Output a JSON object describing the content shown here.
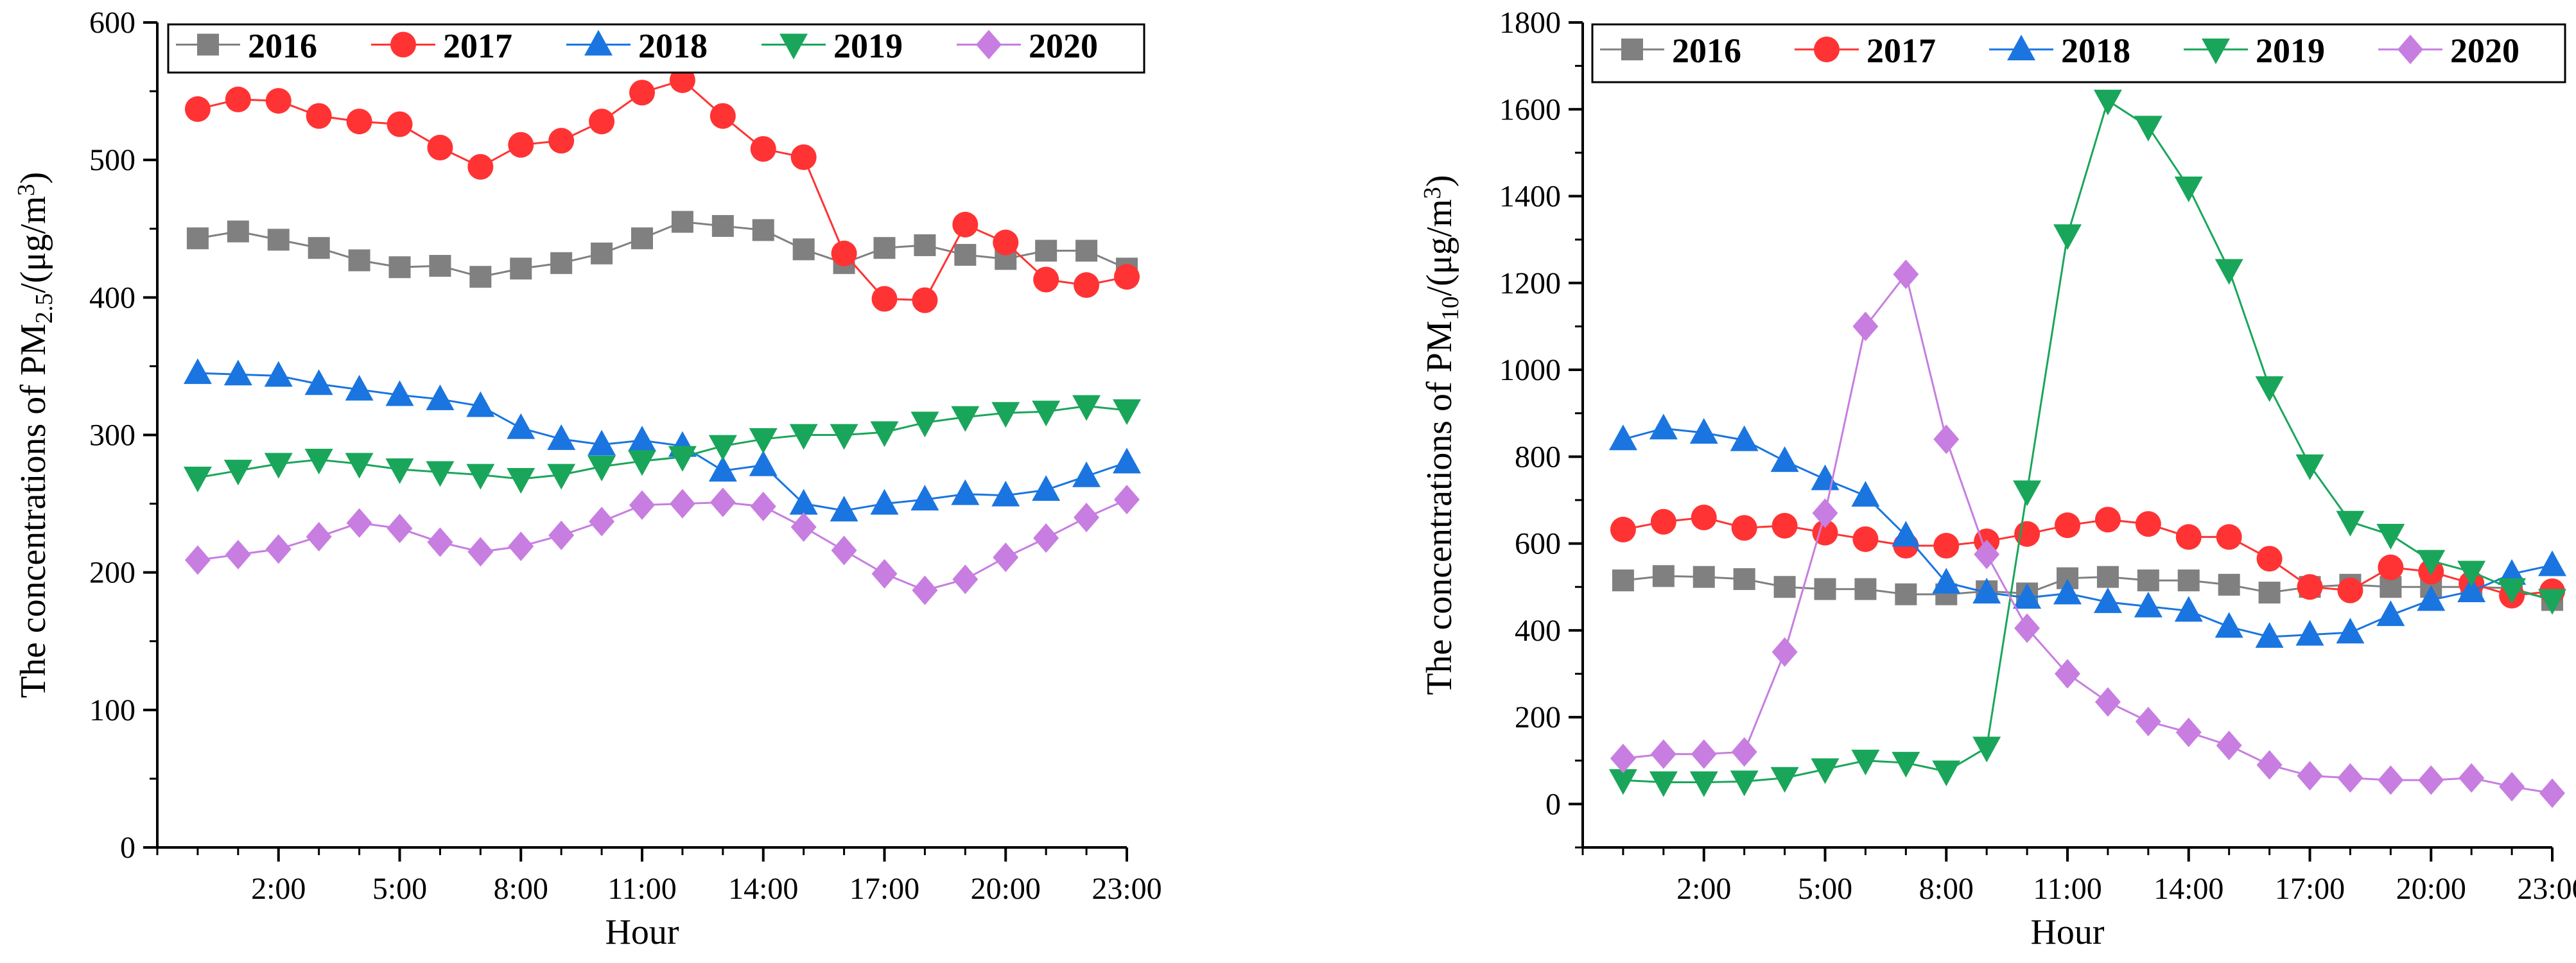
{
  "chart_data": [
    {
      "type": "line",
      "ylabel": {
        "prefix": "The concentrations of PM",
        "sub": "2.5",
        "mid": "/(μg/m",
        "sup": "3",
        "suffix": ")"
      },
      "xlabel": "Hour",
      "xlim": [
        -1,
        23
      ],
      "ylim": [
        0,
        600
      ],
      "yticks": [
        0,
        100,
        200,
        300,
        400,
        500,
        600
      ],
      "xticks": [
        {
          "value": 2,
          "label": "2:00"
        },
        {
          "value": 5,
          "label": "5:00"
        },
        {
          "value": 8,
          "label": "8:00"
        },
        {
          "value": 11,
          "label": "11:00"
        },
        {
          "value": 14,
          "label": "14:00"
        },
        {
          "value": 17,
          "label": "17:00"
        },
        {
          "value": 20,
          "label": "20:00"
        },
        {
          "value": 23,
          "label": "23:00"
        }
      ],
      "x": [
        0,
        1,
        2,
        3,
        4,
        5,
        6,
        7,
        8,
        9,
        10,
        11,
        12,
        13,
        14,
        15,
        16,
        17,
        18,
        19,
        20,
        21,
        22,
        23
      ],
      "legend_position": "top",
      "series": [
        {
          "name": "2016",
          "color": "#808080",
          "marker": "square",
          "values": [
            443,
            448,
            442,
            436,
            427,
            422,
            423,
            415,
            421,
            425,
            432,
            443,
            455,
            452,
            449,
            435,
            425,
            436,
            438,
            431,
            428,
            434,
            434,
            421
          ]
        },
        {
          "name": "2017",
          "color": "#ff3333",
          "marker": "circle",
          "values": [
            537,
            544,
            543,
            532,
            528,
            526,
            509,
            495,
            511,
            514,
            528,
            549,
            558,
            532,
            508,
            502,
            432,
            399,
            398,
            453,
            440,
            413,
            409,
            415
          ]
        },
        {
          "name": "2018",
          "color": "#1a75e0",
          "marker": "triangle-up",
          "values": [
            345,
            344,
            343,
            337,
            333,
            329,
            326,
            321,
            305,
            297,
            293,
            296,
            292,
            274,
            278,
            250,
            245,
            250,
            253,
            257,
            256,
            260,
            270,
            280
          ]
        },
        {
          "name": "2019",
          "color": "#1aa65a",
          "marker": "triangle-down",
          "values": [
            269,
            274,
            279,
            282,
            279,
            275,
            273,
            271,
            268,
            271,
            277,
            281,
            284,
            292,
            297,
            300,
            300,
            302,
            309,
            313,
            316,
            317,
            321,
            318
          ]
        },
        {
          "name": "2020",
          "color": "#c77ee0",
          "marker": "diamond",
          "values": [
            209,
            213,
            217,
            226,
            236,
            232,
            222,
            215,
            219,
            227,
            237,
            249,
            250,
            251,
            248,
            233,
            216,
            199,
            187,
            195,
            211,
            225,
            240,
            253
          ]
        }
      ]
    },
    {
      "type": "line",
      "ylabel": {
        "prefix": "The concentrations of PM",
        "sub": "10",
        "mid": "/(μg/m",
        "sup": "3",
        "suffix": ")"
      },
      "xlabel": "Hour",
      "xlim": [
        -1,
        23
      ],
      "ylim": [
        -100,
        1800
      ],
      "yticks": [
        0,
        200,
        400,
        600,
        800,
        1000,
        1200,
        1400,
        1600,
        1800
      ],
      "xticks": [
        {
          "value": 2,
          "label": "2:00"
        },
        {
          "value": 5,
          "label": "5:00"
        },
        {
          "value": 8,
          "label": "8:00"
        },
        {
          "value": 11,
          "label": "11:00"
        },
        {
          "value": 14,
          "label": "14:00"
        },
        {
          "value": 17,
          "label": "17:00"
        },
        {
          "value": 20,
          "label": "20:00"
        },
        {
          "value": 23,
          "label": "23:00"
        }
      ],
      "x": [
        0,
        1,
        2,
        3,
        4,
        5,
        6,
        7,
        8,
        9,
        10,
        11,
        12,
        13,
        14,
        15,
        16,
        17,
        18,
        19,
        20,
        21,
        22,
        23
      ],
      "legend_position": "top",
      "series": [
        {
          "name": "2016",
          "color": "#808080",
          "marker": "square",
          "values": [
            515,
            525,
            523,
            518,
            500,
            495,
            495,
            483,
            483,
            490,
            485,
            520,
            523,
            515,
            515,
            505,
            487,
            500,
            505,
            500,
            500,
            500,
            497,
            470
          ]
        },
        {
          "name": "2017",
          "color": "#ff3333",
          "marker": "circle",
          "values": [
            632,
            650,
            660,
            636,
            641,
            625,
            610,
            595,
            595,
            605,
            622,
            642,
            655,
            645,
            615,
            615,
            565,
            500,
            492,
            545,
            535,
            508,
            480,
            490
          ]
        },
        {
          "name": "2018",
          "color": "#1a75e0",
          "marker": "triangle-up",
          "values": [
            840,
            865,
            855,
            838,
            790,
            748,
            710,
            618,
            510,
            487,
            475,
            485,
            465,
            455,
            445,
            408,
            385,
            390,
            395,
            435,
            470,
            490,
            530,
            550
          ]
        },
        {
          "name": "2019",
          "color": "#1aa65a",
          "marker": "triangle-down",
          "values": [
            55,
            50,
            50,
            52,
            60,
            80,
            100,
            95,
            75,
            130,
            720,
            1310,
            1620,
            1560,
            1420,
            1230,
            960,
            780,
            650,
            620,
            560,
            535,
            495,
            470
          ]
        },
        {
          "name": "2020",
          "color": "#c77ee0",
          "marker": "diamond",
          "values": [
            105,
            115,
            115,
            120,
            350,
            670,
            1100,
            1220,
            840,
            575,
            405,
            300,
            235,
            190,
            165,
            135,
            90,
            65,
            60,
            55,
            55,
            60,
            40,
            25
          ]
        }
      ]
    }
  ]
}
